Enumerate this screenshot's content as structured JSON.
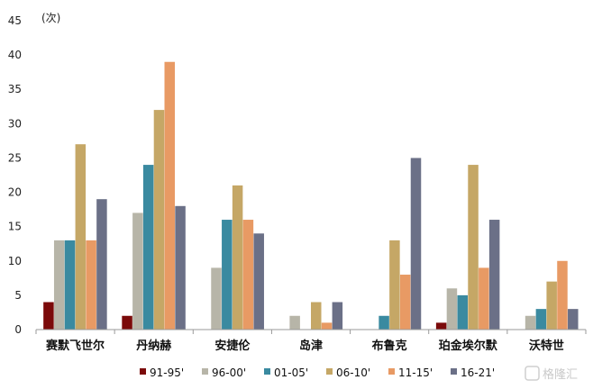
{
  "chart_data": {
    "type": "bar",
    "unit_label": "(次)",
    "categories": [
      "赛默飞世尔",
      "丹纳赫",
      "安捷伦",
      "岛津",
      "布鲁克",
      "珀金埃尔默",
      "沃特世"
    ],
    "series": [
      {
        "name": "91-95'",
        "color": "#7b0a0a",
        "values": [
          4,
          2,
          0,
          0,
          0,
          1,
          0
        ]
      },
      {
        "name": "96-00'",
        "color": "#b7b5a8",
        "values": [
          13,
          17,
          9,
          2,
          0,
          6,
          2
        ]
      },
      {
        "name": "01-05'",
        "color": "#3a8aa0",
        "values": [
          13,
          24,
          16,
          0,
          2,
          5,
          3
        ]
      },
      {
        "name": "06-10'",
        "color": "#c5a766",
        "values": [
          27,
          32,
          21,
          4,
          13,
          24,
          7
        ]
      },
      {
        "name": "11-15'",
        "color": "#e89a64",
        "values": [
          13,
          39,
          16,
          1,
          8,
          9,
          10
        ]
      },
      {
        "name": "16-21'",
        "color": "#6b7087",
        "values": [
          19,
          18,
          14,
          4,
          25,
          16,
          3
        ]
      }
    ],
    "ylim": [
      0,
      45
    ],
    "yticks": [
      0,
      5,
      10,
      15,
      20,
      25,
      30,
      35,
      40,
      45
    ],
    "grid": false,
    "legend": "bottom"
  },
  "watermark": {
    "text": "格隆汇"
  }
}
